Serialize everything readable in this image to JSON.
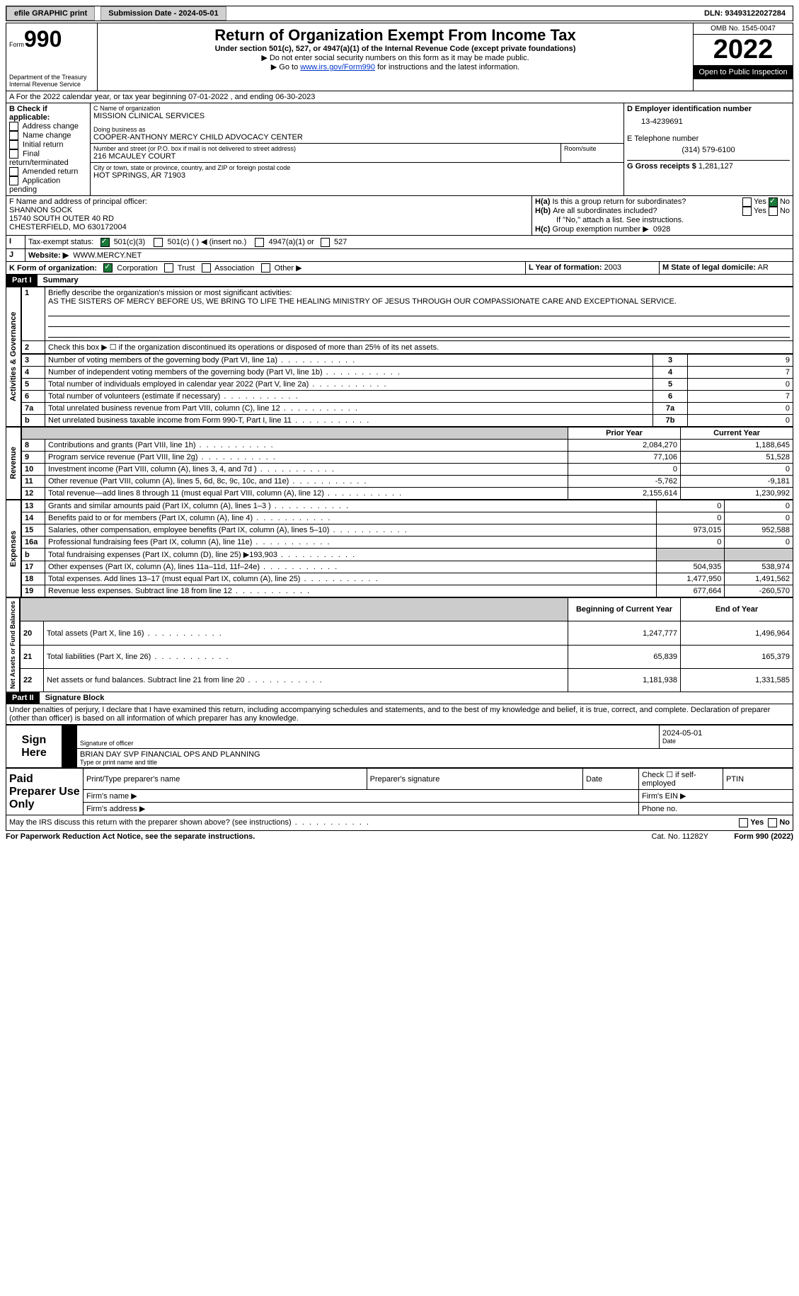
{
  "topbar": {
    "efile": "efile GRAPHIC print",
    "subdate_label": "Submission Date - 2024-05-01",
    "dln": "DLN: 93493122027284"
  },
  "header": {
    "form_label": "Form",
    "form_num": "990",
    "dept": "Department of the Treasury\nInternal Revenue Service",
    "title": "Return of Organization Exempt From Income Tax",
    "subtitle": "Under section 501(c), 527, or 4947(a)(1) of the Internal Revenue Code (except private foundations)",
    "note1": "▶ Do not enter social security numbers on this form as it may be made public.",
    "note2": "▶ Go to ",
    "note2_link": "www.irs.gov/Form990",
    "note2_tail": " for instructions and the latest information.",
    "omb": "OMB No. 1545-0047",
    "year": "2022",
    "open": "Open to Public Inspection"
  },
  "A": {
    "text": "A For the 2022 calendar year, or tax year beginning 07-01-2022    , and ending 06-30-2023"
  },
  "B": {
    "label": "B Check if applicable:",
    "opts": [
      "Address change",
      "Name change",
      "Initial return",
      "Final return/terminated",
      "Amended return",
      "Application pending"
    ]
  },
  "C": {
    "name_label": "C Name of organization",
    "name": "MISSION CLINICAL SERVICES",
    "dba_label": "Doing business as",
    "dba": "COOPER-ANTHONY MERCY CHILD ADVOCACY CENTER",
    "addr_label": "Number and street (or P.O. box if mail is not delivered to street address)",
    "addr": "216 MCAULEY COURT",
    "room_label": "Room/suite",
    "city_label": "City or town, state or province, country, and ZIP or foreign postal code",
    "city": "HOT SPRINGS, AR   71903"
  },
  "D": {
    "label": "D Employer identification number",
    "val": "13-4239691"
  },
  "E": {
    "label": "E Telephone number",
    "val": "(314) 579-6100"
  },
  "G": {
    "label": "G Gross receipts $",
    "val": "1,281,127"
  },
  "F": {
    "label": "F  Name and address of principal officer:",
    "name": "SHANNON SOCK",
    "addr1": "15740 SOUTH OUTER 40 RD",
    "addr2": "CHESTERFIELD, MO  630172004"
  },
  "H": {
    "a": "Is this a group return for subordinates?",
    "a_no": "No",
    "a_yes": "Yes",
    "b": "Are all subordinates included?",
    "b_yes": "Yes",
    "b_no": "No",
    "b_note": "If \"No,\" attach a list. See instructions.",
    "c_label": "Group exemption number ▶",
    "c_val": "0928"
  },
  "I": {
    "label": "Tax-exempt status:",
    "c501c3": "501(c)(3)",
    "c501c": "501(c) (  ) ◀ (insert no.)",
    "c4947": "4947(a)(1) or",
    "c527": "527"
  },
  "J": {
    "label": "Website: ▶",
    "val": "WWW.MERCY.NET"
  },
  "K": {
    "label": "K Form of organization:",
    "corp": "Corporation",
    "trust": "Trust",
    "assoc": "Association",
    "other": "Other ▶"
  },
  "L": {
    "label": "L Year of formation:",
    "val": "2003"
  },
  "M": {
    "label": "M State of legal domicile:",
    "val": "AR"
  },
  "part1": {
    "label": "Part I",
    "title": "Summary"
  },
  "summary": {
    "q1": "Briefly describe the organization's mission or most significant activities:",
    "q1_ans": "AS THE SISTERS OF MERCY BEFORE US, WE BRING TO LIFE THE HEALING MINISTRY OF JESUS THROUGH OUR COMPASSIONATE CARE AND EXCEPTIONAL SERVICE.",
    "q2": "Check this box ▶ ☐ if the organization discontinued its operations or disposed of more than 25% of its net assets.",
    "side_ag": "Activities & Governance",
    "side_rev": "Revenue",
    "side_exp": "Expenses",
    "side_na": "Net Assets or\nFund Balances",
    "rows_ag": [
      {
        "n": "3",
        "t": "Number of voting members of the governing body (Part VI, line 1a)",
        "box": "3",
        "v": "9"
      },
      {
        "n": "4",
        "t": "Number of independent voting members of the governing body (Part VI, line 1b)",
        "box": "4",
        "v": "7"
      },
      {
        "n": "5",
        "t": "Total number of individuals employed in calendar year 2022 (Part V, line 2a)",
        "box": "5",
        "v": "0"
      },
      {
        "n": "6",
        "t": "Total number of volunteers (estimate if necessary)",
        "box": "6",
        "v": "7"
      },
      {
        "n": "7a",
        "t": "Total unrelated business revenue from Part VIII, column (C), line 12",
        "box": "7a",
        "v": "0"
      },
      {
        "n": "b",
        "t": "Net unrelated business taxable income from Form 990-T, Part I, line 11",
        "box": "7b",
        "v": "0"
      }
    ],
    "col_prior": "Prior Year",
    "col_curr": "Current Year",
    "rows_rev": [
      {
        "n": "8",
        "t": "Contributions and grants (Part VIII, line 1h)",
        "p": "2,084,270",
        "c": "1,188,645"
      },
      {
        "n": "9",
        "t": "Program service revenue (Part VIII, line 2g)",
        "p": "77,106",
        "c": "51,528"
      },
      {
        "n": "10",
        "t": "Investment income (Part VIII, column (A), lines 3, 4, and 7d )",
        "p": "0",
        "c": "0"
      },
      {
        "n": "11",
        "t": "Other revenue (Part VIII, column (A), lines 5, 6d, 8c, 9c, 10c, and 11e)",
        "p": "-5,762",
        "c": "-9,181"
      },
      {
        "n": "12",
        "t": "Total revenue—add lines 8 through 11 (must equal Part VIII, column (A), line 12)",
        "p": "2,155,614",
        "c": "1,230,992"
      }
    ],
    "rows_exp": [
      {
        "n": "13",
        "t": "Grants and similar amounts paid (Part IX, column (A), lines 1–3 )",
        "p": "0",
        "c": "0"
      },
      {
        "n": "14",
        "t": "Benefits paid to or for members (Part IX, column (A), line 4)",
        "p": "0",
        "c": "0"
      },
      {
        "n": "15",
        "t": "Salaries, other compensation, employee benefits (Part IX, column (A), lines 5–10)",
        "p": "973,015",
        "c": "952,588"
      },
      {
        "n": "16a",
        "t": "Professional fundraising fees (Part IX, column (A), line 11e)",
        "p": "0",
        "c": "0"
      },
      {
        "n": "b",
        "t": "Total fundraising expenses (Part IX, column (D), line 25) ▶193,903",
        "p": "",
        "c": "",
        "shade": true
      },
      {
        "n": "17",
        "t": "Other expenses (Part IX, column (A), lines 11a–11d, 11f–24e)",
        "p": "504,935",
        "c": "538,974"
      },
      {
        "n": "18",
        "t": "Total expenses. Add lines 13–17 (must equal Part IX, column (A), line 25)",
        "p": "1,477,950",
        "c": "1,491,562"
      },
      {
        "n": "19",
        "t": "Revenue less expenses. Subtract line 18 from line 12",
        "p": "677,664",
        "c": "-260,570"
      }
    ],
    "col_beg": "Beginning of Current Year",
    "col_end": "End of Year",
    "rows_na": [
      {
        "n": "20",
        "t": "Total assets (Part X, line 16)",
        "p": "1,247,777",
        "c": "1,496,964"
      },
      {
        "n": "21",
        "t": "Total liabilities (Part X, line 26)",
        "p": "65,839",
        "c": "165,379"
      },
      {
        "n": "22",
        "t": "Net assets or fund balances. Subtract line 21 from line 20",
        "p": "1,181,938",
        "c": "1,331,585"
      }
    ]
  },
  "part2": {
    "label": "Part II",
    "title": "Signature Block",
    "decl": "Under penalties of perjury, I declare that I have examined this return, including accompanying schedules and statements, and to the best of my knowledge and belief, it is true, correct, and complete. Declaration of preparer (other than officer) is based on all information of which preparer has any knowledge."
  },
  "sign": {
    "here": "Sign Here",
    "sig_label": "Signature of officer",
    "date_label": "Date",
    "date": "2024-05-01",
    "name": "BRIAN DAY SVP FINANCIAL OPS AND PLANNING",
    "name_label": "Type or print name and title"
  },
  "paid": {
    "label": "Paid Preparer Use Only",
    "c1": "Print/Type preparer's name",
    "c2": "Preparer's signature",
    "c3": "Date",
    "c4": "Check ☐ if self-employed",
    "c5": "PTIN",
    "firm": "Firm's name  ▶",
    "ein": "Firm's EIN ▶",
    "addr": "Firm's address ▶",
    "phone": "Phone no."
  },
  "footer": {
    "q": "May the IRS discuss this return with the preparer shown above? (see instructions)",
    "yes": "Yes",
    "no": "No",
    "pra": "For Paperwork Reduction Act Notice, see the separate instructions.",
    "cat": "Cat. No. 11282Y",
    "form": "Form 990 (2022)"
  }
}
